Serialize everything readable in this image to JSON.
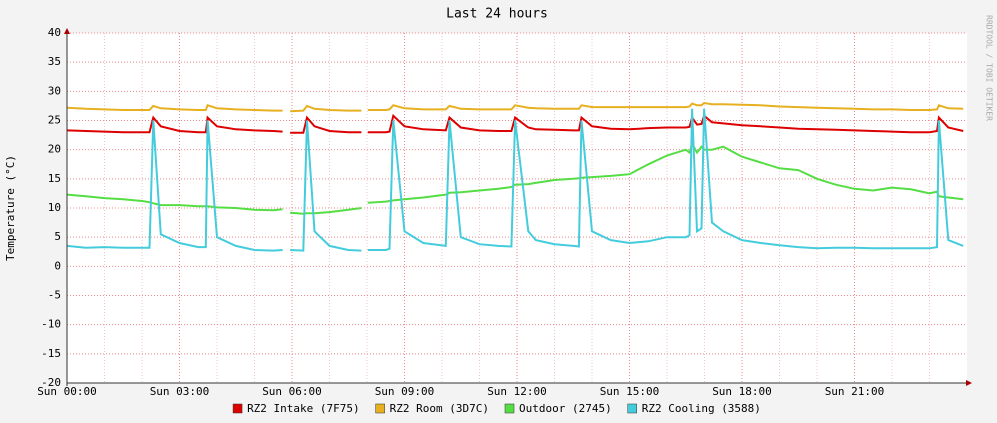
{
  "chart_data": {
    "type": "line",
    "title": "Last 24 hours",
    "y_label": "Temperature (°C)",
    "watermark": "RRDTOOL / TOBI OETIKER",
    "x": [
      0,
      0.5,
      1,
      1.5,
      2,
      2.2,
      2.3,
      2.5,
      3,
      3.5,
      3.7,
      3.75,
      4,
      4.5,
      5,
      5.5,
      5.75,
      5.85,
      5.95,
      6.3,
      6.4,
      6.6,
      7,
      7.5,
      7.85,
      7.93,
      8.02,
      8.5,
      8.6,
      8.7,
      9,
      9.5,
      10.1,
      10.2,
      10.5,
      11,
      11.5,
      11.85,
      11.95,
      12.3,
      12.5,
      13,
      13.5,
      13.65,
      13.72,
      14,
      14.5,
      15,
      15.5,
      16,
      16.5,
      16.6,
      16.67,
      16.8,
      16.92,
      16.99,
      17.2,
      17.5,
      18,
      18.5,
      19,
      19.5,
      20,
      20.5,
      21,
      21.5,
      22,
      22.5,
      23,
      23.2,
      23.25,
      23.5,
      23.9
    ],
    "series": [
      {
        "name": "RZ2 Intake (7F75)",
        "color": "#dd0000",
        "values": [
          23.3,
          23.2,
          23.1,
          23,
          23,
          23,
          25.5,
          24,
          23.2,
          23,
          23,
          25.5,
          24,
          23.5,
          23.3,
          23.2,
          23.1,
          null,
          22.9,
          22.9,
          25.5,
          24,
          23.2,
          23,
          23,
          null,
          23,
          23,
          23.1,
          25.8,
          24,
          23.5,
          23.3,
          25.5,
          23.8,
          23.3,
          23.2,
          23.2,
          25.5,
          23.8,
          23.5,
          23.4,
          23.3,
          23.3,
          25.5,
          24,
          23.6,
          23.5,
          23.7,
          23.8,
          23.8,
          23.9,
          25.5,
          24.3,
          24.4,
          25.8,
          24.7,
          24.5,
          24.2,
          24,
          23.8,
          23.6,
          23.5,
          23.4,
          23.3,
          23.2,
          23.1,
          23,
          23,
          23.2,
          25.5,
          23.8,
          23.2
        ]
      },
      {
        "name": "RZ2 Room (3D7C)",
        "color": "#e6b020",
        "values": [
          27.2,
          27,
          26.9,
          26.8,
          26.8,
          26.8,
          27.5,
          27.1,
          26.9,
          26.8,
          26.8,
          27.6,
          27.1,
          26.9,
          26.8,
          26.7,
          26.7,
          null,
          26.6,
          26.7,
          27.5,
          27,
          26.8,
          26.7,
          26.7,
          null,
          26.8,
          26.8,
          26.9,
          27.6,
          27.1,
          26.9,
          26.9,
          27.5,
          27,
          26.9,
          26.9,
          26.9,
          27.6,
          27.2,
          27.1,
          27,
          27,
          27,
          27.6,
          27.3,
          27.3,
          27.3,
          27.3,
          27.3,
          27.3,
          27.4,
          27.9,
          27.6,
          27.6,
          28,
          27.8,
          27.8,
          27.7,
          27.6,
          27.4,
          27.3,
          27.2,
          27.1,
          27,
          26.9,
          26.9,
          26.8,
          26.8,
          26.9,
          27.6,
          27.1,
          27
        ]
      },
      {
        "name": "Outdoor (2745)",
        "color": "#55dd44",
        "values": [
          12.3,
          12,
          11.7,
          11.5,
          11.2,
          11,
          10.8,
          10.5,
          10.5,
          10.3,
          10.3,
          10.3,
          10.1,
          10,
          9.7,
          9.6,
          9.8,
          null,
          9.2,
          9,
          9.1,
          9.1,
          9.3,
          9.7,
          10,
          null,
          10.9,
          11.1,
          11.2,
          11.3,
          11.5,
          11.8,
          12.3,
          12.6,
          12.7,
          13,
          13.3,
          13.6,
          14,
          14.1,
          14.3,
          14.8,
          15,
          15.1,
          15.2,
          15.3,
          15.5,
          15.8,
          17.5,
          19,
          20,
          19.5,
          21,
          19.5,
          20.5,
          20,
          20,
          20.5,
          18.8,
          17.8,
          16.8,
          16.5,
          15,
          14,
          13.3,
          13,
          13.5,
          13.2,
          12.5,
          12.8,
          12,
          11.8,
          11.5
        ]
      },
      {
        "name": "RZ2 Cooling (3588)",
        "color": "#44ccdd",
        "values": [
          3.5,
          3.2,
          3.3,
          3.2,
          3.2,
          3.2,
          25,
          5.5,
          4,
          3.3,
          3.3,
          25,
          5,
          3.5,
          2.8,
          2.7,
          2.8,
          null,
          2.8,
          2.7,
          25,
          6,
          3.5,
          2.8,
          2.7,
          null,
          2.8,
          2.8,
          3,
          25,
          6,
          4,
          3.5,
          25,
          5,
          3.8,
          3.5,
          3.4,
          25,
          6,
          4.5,
          3.8,
          3.5,
          3.4,
          25,
          6,
          4.5,
          4,
          4.3,
          5,
          5,
          5.3,
          27,
          6,
          6.5,
          27,
          7.5,
          6,
          4.5,
          4,
          3.6,
          3.3,
          3.1,
          3.2,
          3.2,
          3.1,
          3.1,
          3.1,
          3.1,
          3.3,
          25,
          4.5,
          3.5
        ]
      }
    ],
    "xlim": [
      0,
      24
    ],
    "xticks": [
      {
        "value": 0,
        "label": "Sun 00:00"
      },
      {
        "value": 3,
        "label": "Sun 03:00"
      },
      {
        "value": 6,
        "label": "Sun 06:00"
      },
      {
        "value": 9,
        "label": "Sun 09:00"
      },
      {
        "value": 12,
        "label": "Sun 12:00"
      },
      {
        "value": 15,
        "label": "Sun 15:00"
      },
      {
        "value": 18,
        "label": "Sun 18:00"
      },
      {
        "value": 21,
        "label": "Sun 21:00"
      }
    ],
    "ylim": [
      -20,
      40
    ],
    "yticks": [
      -20,
      -15,
      -10,
      -5,
      0,
      5,
      10,
      15,
      20,
      25,
      30,
      35,
      40
    ],
    "grid": true
  }
}
